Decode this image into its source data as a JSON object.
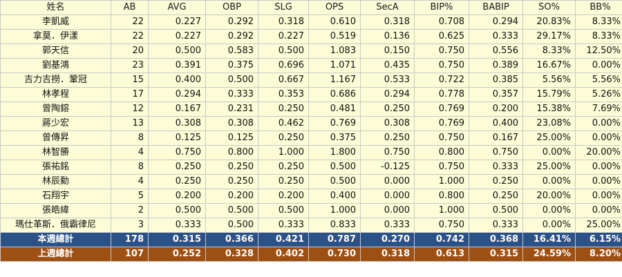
{
  "headers": [
    "姓名",
    "AB",
    "AVG",
    "OBP",
    "SLG",
    "OPS",
    "SecA",
    "BIP%",
    "BABIP",
    "SO%",
    "BB%"
  ],
  "rows": [
    [
      "李凱威",
      "22",
      "0.227",
      "0.292",
      "0.318",
      "0.610",
      "0.318",
      "0.708",
      "0.294",
      "20.83%",
      "8.33%"
    ],
    [
      "拿莫．伊漾",
      "22",
      "0.227",
      "0.292",
      "0.227",
      "0.519",
      "0.136",
      "0.625",
      "0.333",
      "29.17%",
      "8.33%"
    ],
    [
      "郭天信",
      "20",
      "0.500",
      "0.583",
      "0.500",
      "1.083",
      "0.150",
      "0.750",
      "0.556",
      "8.33%",
      "12.50%"
    ],
    [
      "劉基鴻",
      "23",
      "0.391",
      "0.375",
      "0.696",
      "1.071",
      "0.435",
      "0.750",
      "0.389",
      "16.67%",
      "0.00%"
    ],
    [
      "吉力吉撈．鞏冠",
      "15",
      "0.400",
      "0.500",
      "0.667",
      "1.167",
      "0.533",
      "0.722",
      "0.385",
      "5.56%",
      "5.56%"
    ],
    [
      "林孝程",
      "17",
      "0.294",
      "0.333",
      "0.353",
      "0.686",
      "0.294",
      "0.778",
      "0.357",
      "15.79%",
      "5.26%"
    ],
    [
      "曾陶鎔",
      "12",
      "0.167",
      "0.231",
      "0.250",
      "0.481",
      "0.250",
      "0.769",
      "0.200",
      "15.38%",
      "7.69%"
    ],
    [
      "蔣少宏",
      "13",
      "0.308",
      "0.308",
      "0.462",
      "0.769",
      "0.308",
      "0.769",
      "0.400",
      "23.08%",
      "0.00%"
    ],
    [
      "曾傳昇",
      "8",
      "0.125",
      "0.125",
      "0.250",
      "0.375",
      "0.250",
      "0.750",
      "0.167",
      "25.00%",
      "0.00%"
    ],
    [
      "林智勝",
      "4",
      "0.750",
      "0.800",
      "1.000",
      "1.800",
      "0.750",
      "0.800",
      "0.750",
      "0.00%",
      "20.00%"
    ],
    [
      "張祐銘",
      "8",
      "0.250",
      "0.250",
      "0.250",
      "0.500",
      "-0.125",
      "0.750",
      "0.333",
      "25.00%",
      "0.00%"
    ],
    [
      "林辰勳",
      "4",
      "0.250",
      "0.250",
      "0.250",
      "0.500",
      "0.000",
      "1.000",
      "0.250",
      "0.00%",
      "0.00%"
    ],
    [
      "石翔宇",
      "5",
      "0.200",
      "0.200",
      "0.200",
      "0.400",
      "0.000",
      "0.800",
      "0.250",
      "20.00%",
      "0.00%"
    ],
    [
      "張皓緯",
      "2",
      "0.500",
      "0.500",
      "0.500",
      "1.000",
      "0.000",
      "1.000",
      "0.500",
      "0.00%",
      "0.00%"
    ],
    [
      "瑪仕革斯．俄霸律尼",
      "3",
      "0.333",
      "0.500",
      "0.333",
      "0.833",
      "0.333",
      "0.750",
      "0.333",
      "0.00%",
      "25.00%"
    ]
  ],
  "totals": [
    [
      "本週總計",
      "178",
      "0.315",
      "0.366",
      "0.421",
      "0.787",
      "0.270",
      "0.742",
      "0.368",
      "16.41%",
      "6.15%"
    ],
    [
      "上週總計",
      "107",
      "0.252",
      "0.328",
      "0.402",
      "0.730",
      "0.318",
      "0.613",
      "0.315",
      "24.59%",
      "8.20%"
    ]
  ],
  "colors": {
    "row_background": "#fcfcd6",
    "this_week_total": "#2a5289",
    "last_week_total": "#9e4f12",
    "border": "#c9c9c9"
  }
}
